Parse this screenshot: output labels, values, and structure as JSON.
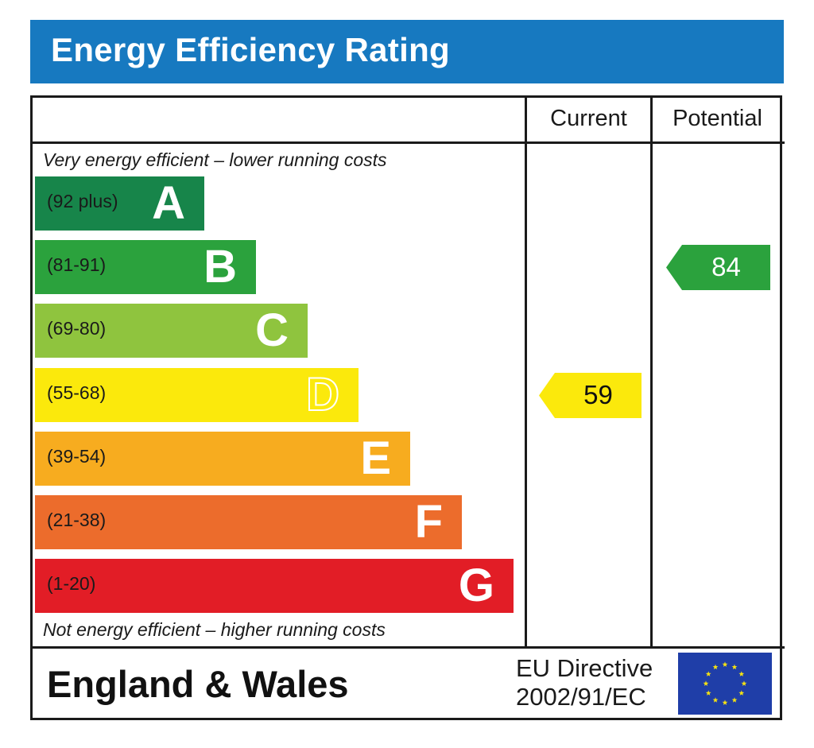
{
  "header": {
    "title": "Energy Efficiency Rating"
  },
  "columns": {
    "current": "Current",
    "potential": "Potential"
  },
  "notes": {
    "top": "Very energy efficient – lower running costs",
    "bottom": "Not energy efficient – higher running costs"
  },
  "footer": {
    "country": "England & Wales",
    "directive_line1": "EU Directive",
    "directive_line2": "2002/91/EC"
  },
  "chart_data": {
    "type": "bar",
    "title": "Energy Efficiency Rating",
    "bands": [
      {
        "letter": "A",
        "range": "(92 plus)",
        "color": "#17854a"
      },
      {
        "letter": "B",
        "range": "(81-91)",
        "color": "#2ba23d"
      },
      {
        "letter": "C",
        "range": "(69-80)",
        "color": "#8fc43e"
      },
      {
        "letter": "D",
        "range": "(55-68)",
        "color": "#fbe90c"
      },
      {
        "letter": "E",
        "range": "(39-54)",
        "color": "#f7ac1f"
      },
      {
        "letter": "F",
        "range": "(21-38)",
        "color": "#ec6c2c"
      },
      {
        "letter": "G",
        "range": "(1-20)",
        "color": "#e21d26"
      }
    ],
    "current": {
      "value": 59,
      "band": "D",
      "color": "#fbe90c"
    },
    "potential": {
      "value": 84,
      "band": "B",
      "color": "#2ba23d"
    }
  },
  "colors": {
    "title_bar": "#1779c0",
    "eu_flag_blue": "#1f3ea8",
    "eu_flag_star": "#f6e312"
  }
}
